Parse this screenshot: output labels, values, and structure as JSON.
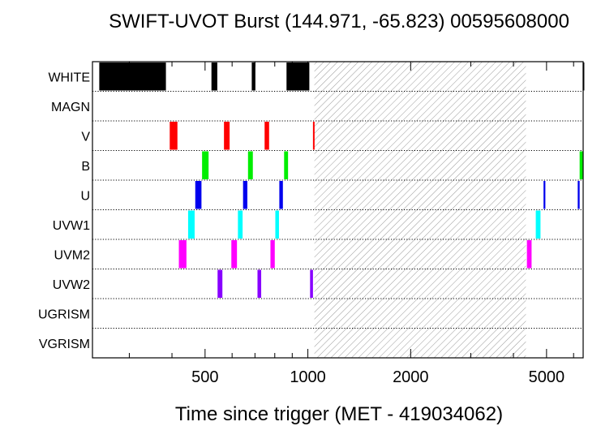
{
  "chart_data": {
    "type": "timeline",
    "title": "SWIFT-UVOT Burst (144.971, -65.823) 00595608000",
    "xlabel": "Time since trigger (MET - 419034062)",
    "ylabel": "",
    "x_scale": "log",
    "xlim": [
      234,
      6400
    ],
    "x_ticks": [
      {
        "value": 500,
        "label": "500"
      },
      {
        "value": 1000,
        "label": "1000"
      },
      {
        "value": 2000,
        "label": "2000"
      },
      {
        "value": 5000,
        "label": "5000"
      }
    ],
    "filters": [
      "WHITE",
      "MAGN",
      "V",
      "B",
      "U",
      "UVW1",
      "UVM2",
      "UVW2",
      "UGRISM",
      "VGRISM"
    ],
    "gap": {
      "start": 1045,
      "end": 4350
    },
    "exposures": [
      {
        "filter": "WHITE",
        "color": "#000000",
        "segments": [
          [
            245,
            384
          ],
          [
            522,
            543
          ],
          [
            685,
            702
          ],
          [
            866,
            1010
          ],
          [
            6380,
            6400
          ]
        ]
      },
      {
        "filter": "V",
        "color": "#ff0000",
        "segments": [
          [
            394,
            415
          ],
          [
            568,
            590
          ],
          [
            747,
            770
          ],
          [
            1035,
            1045
          ]
        ]
      },
      {
        "filter": "B",
        "color": "#00ee00",
        "segments": [
          [
            490,
            512
          ],
          [
            668,
            690
          ],
          [
            852,
            875
          ],
          [
            6250,
            6400
          ]
        ]
      },
      {
        "filter": "U",
        "color": "#0000ee",
        "segments": [
          [
            468,
            488
          ],
          [
            646,
            665
          ],
          [
            825,
            845
          ],
          [
            4900,
            4960
          ],
          [
            6170,
            6250
          ]
        ]
      },
      {
        "filter": "UVW1",
        "color": "#00ffff",
        "segments": [
          [
            446,
            466
          ],
          [
            624,
            644
          ],
          [
            803,
            823
          ],
          [
            4650,
            4800
          ]
        ]
      },
      {
        "filter": "UVM2",
        "color": "#ff00ff",
        "segments": [
          [
            419,
            441
          ],
          [
            597,
            620
          ],
          [
            777,
            800
          ],
          [
            4380,
            4520
          ]
        ]
      },
      {
        "filter": "UVW2",
        "color": "#8800ff",
        "segments": [
          [
            544,
            562
          ],
          [
            712,
            730
          ],
          [
            1015,
            1035
          ]
        ]
      }
    ]
  }
}
